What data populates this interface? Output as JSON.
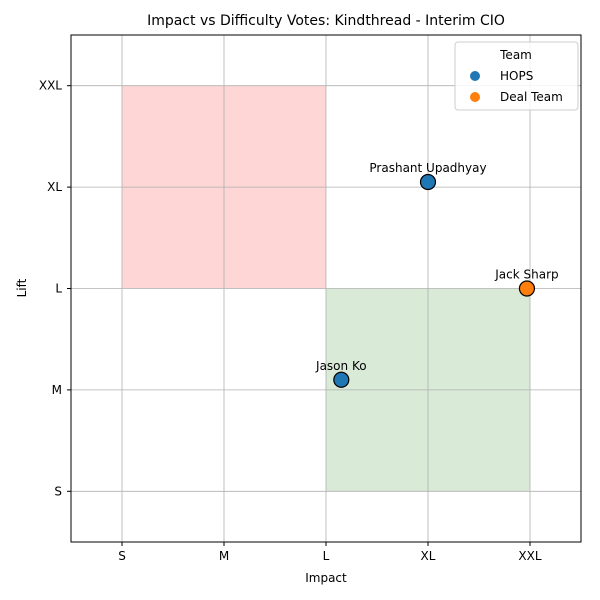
{
  "chart_data": {
    "type": "scatter",
    "title": "Impact vs Difficulty Votes: Kindthread - Interim CIO",
    "xlabel": "Impact",
    "ylabel": "Lift",
    "x_categories": [
      "S",
      "M",
      "L",
      "XL",
      "XXL"
    ],
    "y_categories": [
      "S",
      "M",
      "L",
      "XL",
      "XXL"
    ],
    "xlim": [
      -0.5,
      4.5
    ],
    "ylim": [
      -0.5,
      4.5
    ],
    "grid": true,
    "legend": {
      "title": "Team",
      "placement": "top-right",
      "entries": [
        {
          "name": "HOPS",
          "color": "#1f77b4"
        },
        {
          "name": "Deal Team",
          "color": "#ff7f0e"
        }
      ]
    },
    "regions": [
      {
        "x": [
          0,
          2
        ],
        "y": [
          2,
          4
        ],
        "color": "#ffd6d6"
      },
      {
        "x": [
          2,
          4
        ],
        "y": [
          0,
          2
        ],
        "color": "#d9ead7"
      }
    ],
    "points": [
      {
        "label": "Prashant Upadhyay",
        "team": "HOPS",
        "x": 3.0,
        "y": 3.05
      },
      {
        "label": "Jack Sharp",
        "team": "Deal Team",
        "x": 3.97,
        "y": 2.0
      },
      {
        "label": "Jason Ko",
        "team": "HOPS",
        "x": 2.15,
        "y": 1.1
      }
    ]
  }
}
